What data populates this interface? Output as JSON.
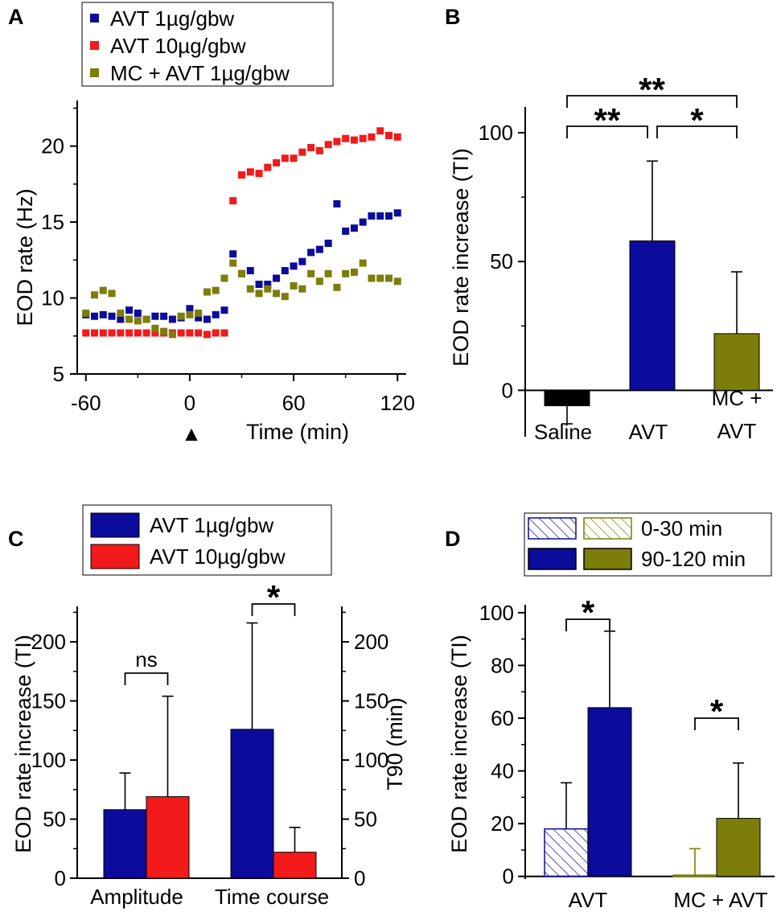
{
  "colors": {
    "blue": "#0b0b9c",
    "red": "#f21a1a",
    "olive": "#7d7d0a",
    "black": "#000000"
  },
  "chart_data": [
    {
      "panel": "A",
      "type": "scatter",
      "xlabel": "Time (min)",
      "ylabel": "EOD rate (Hz)",
      "xlim": [
        -65,
        125
      ],
      "ylim": [
        5,
        23
      ],
      "xticks": [
        -60,
        0,
        60,
        120
      ],
      "yticks": [
        5,
        10,
        15,
        20
      ],
      "xtick_labels": [
        "-60",
        "0",
        "60",
        "120"
      ],
      "ytick_labels": [
        "5",
        "10",
        "15",
        "20"
      ],
      "marker_label": "▲",
      "legend": [
        "AVT 1µg/gbw",
        "AVT 10µg/gbw",
        "MC + AVT 1µg/gbw"
      ],
      "series": [
        {
          "name": "AVT 1µg/gbw",
          "color": "#0b0b9c",
          "x": [
            -60,
            -55,
            -50,
            -45,
            -40,
            -35,
            -30,
            -25,
            -20,
            -15,
            -10,
            -5,
            0,
            5,
            10,
            15,
            20,
            25,
            30,
            35,
            40,
            45,
            50,
            55,
            60,
            65,
            70,
            75,
            80,
            85,
            90,
            95,
            100,
            105,
            110,
            115,
            120
          ],
          "y": [
            8.9,
            8.8,
            8.9,
            8.8,
            8.6,
            9.2,
            9.0,
            8.6,
            8.8,
            8.8,
            8.6,
            8.7,
            9.3,
            8.7,
            8.6,
            8.9,
            9.2,
            12.9,
            11.6,
            11.8,
            10.9,
            10.9,
            11.3,
            11.8,
            12.1,
            12.4,
            13.0,
            13.2,
            13.6,
            16.2,
            14.4,
            14.6,
            15.0,
            15.4,
            15.4,
            15.4,
            15.6
          ]
        },
        {
          "name": "AVT 10µg/gbw",
          "color": "#f21a1a",
          "x": [
            -60,
            -55,
            -50,
            -45,
            -40,
            -35,
            -30,
            -25,
            -20,
            -15,
            -10,
            -5,
            0,
            5,
            10,
            15,
            20,
            25,
            30,
            35,
            40,
            45,
            50,
            55,
            60,
            65,
            70,
            75,
            80,
            85,
            90,
            95,
            100,
            105,
            110,
            115,
            120
          ],
          "y": [
            7.7,
            7.7,
            7.7,
            7.7,
            7.7,
            7.7,
            7.7,
            7.7,
            7.7,
            7.7,
            7.7,
            7.7,
            7.7,
            7.7,
            7.6,
            7.7,
            7.7,
            16.4,
            18.1,
            18.3,
            18.2,
            18.6,
            18.9,
            19.2,
            19.2,
            19.6,
            19.9,
            19.7,
            20.1,
            20.3,
            20.5,
            20.4,
            20.5,
            20.6,
            21.0,
            20.7,
            20.6
          ]
        },
        {
          "name": "MC + AVT 1µg/gbw",
          "color": "#7d7d0a",
          "x": [
            -60,
            -55,
            -50,
            -45,
            -40,
            -35,
            -30,
            -25,
            -20,
            -15,
            -10,
            -5,
            0,
            5,
            10,
            15,
            20,
            25,
            30,
            35,
            40,
            45,
            50,
            55,
            60,
            65,
            70,
            75,
            80,
            85,
            90,
            95,
            100,
            105,
            110,
            115,
            120
          ],
          "y": [
            9.0,
            10.2,
            10.5,
            10.3,
            9.0,
            8.6,
            8.5,
            8.6,
            8.0,
            7.8,
            7.6,
            8.8,
            8.9,
            9.0,
            10.4,
            10.5,
            11.3,
            12.3,
            11.6,
            10.6,
            10.3,
            10.6,
            10.3,
            10.1,
            10.8,
            10.6,
            11.6,
            11.1,
            11.6,
            10.7,
            11.6,
            11.7,
            12.3,
            11.3,
            11.3,
            11.3,
            11.1
          ]
        }
      ]
    },
    {
      "panel": "B",
      "type": "bar",
      "ylabel": "EOD rate increase (TI)",
      "ylim": [
        -18,
        110
      ],
      "yticks": [
        0,
        50,
        100
      ],
      "ytick_labels": [
        "0",
        "50",
        "100"
      ],
      "categories": [
        "Saline",
        "AVT",
        "MC + AVT"
      ],
      "category_lines": [
        [
          "Saline"
        ],
        [
          "AVT"
        ],
        [
          "MC +",
          "AVT"
        ]
      ],
      "values": [
        -6,
        58,
        22
      ],
      "errors": [
        7,
        31,
        24
      ],
      "colors": [
        "#000000",
        "#0b0b9c",
        "#7d7d0a"
      ],
      "significance": [
        {
          "from": 0,
          "to": 1,
          "label": "**",
          "level": 1
        },
        {
          "from": 1,
          "to": 2,
          "label": "*",
          "level": 1
        },
        {
          "from": 0,
          "to": 2,
          "label": "**",
          "level": 2
        }
      ]
    },
    {
      "panel": "C",
      "type": "bar",
      "ylabel": "EOD rate increase (TI)",
      "ylabel_right": "T90 (min)",
      "ylim": [
        0,
        230
      ],
      "yticks": [
        0,
        50,
        100,
        150,
        200
      ],
      "ytick_labels": [
        "0",
        "50",
        "100",
        "150",
        "200"
      ],
      "categories": [
        "Amplitude",
        "Time course"
      ],
      "legend": [
        "AVT 1µg/gbw",
        "AVT 10µg/gbw"
      ],
      "series": [
        {
          "name": "AVT 1µg/gbw",
          "color": "#0b0b9c",
          "values": [
            58,
            126
          ],
          "errors": [
            31,
            90
          ]
        },
        {
          "name": "AVT 10µg/gbw",
          "color": "#f21a1a",
          "values": [
            69,
            22
          ],
          "errors": [
            85,
            21
          ]
        }
      ],
      "significance": [
        {
          "category": 0,
          "label": "ns"
        },
        {
          "category": 1,
          "label": "*"
        }
      ]
    },
    {
      "panel": "D",
      "type": "bar",
      "ylabel": "EOD rate increase (TI)",
      "ylim": [
        -1,
        103
      ],
      "yticks": [
        0,
        20,
        40,
        60,
        80,
        100
      ],
      "ytick_labels": [
        "0",
        "20",
        "40",
        "60",
        "80",
        "100"
      ],
      "categories": [
        "AVT",
        "MC + AVT"
      ],
      "legend": [
        "0-30 min",
        "90-120 min"
      ],
      "series": [
        {
          "name": "0-30 min",
          "style": "hatched",
          "values": [
            18,
            0.5
          ],
          "errors": [
            17.5,
            10
          ]
        },
        {
          "name": "90-120 min",
          "style": "solid",
          "values": [
            64,
            22
          ],
          "errors": [
            29,
            21
          ]
        }
      ],
      "group_colors": [
        "#0b0b9c",
        "#7d7d0a"
      ],
      "significance": [
        {
          "category": 0,
          "label": "*"
        },
        {
          "category": 1,
          "label": "*"
        }
      ]
    }
  ]
}
